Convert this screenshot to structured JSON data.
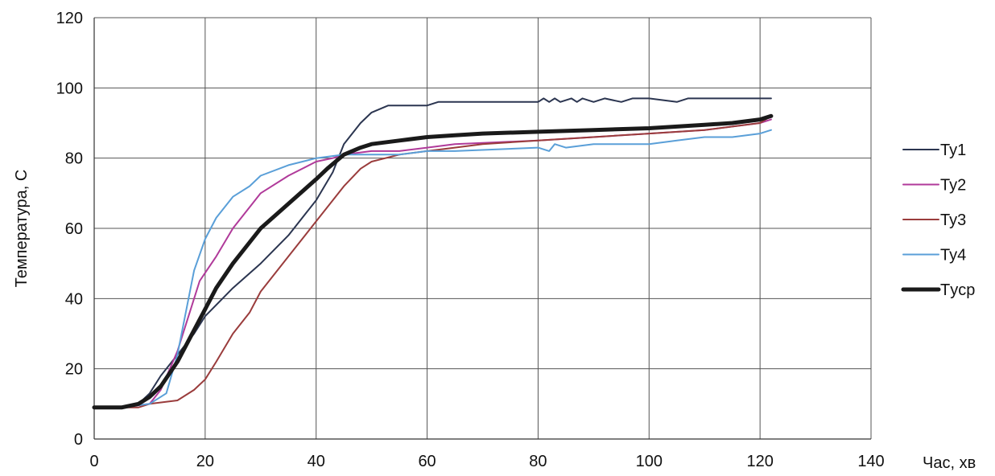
{
  "chart_data": {
    "type": "line",
    "xlabel": "Час, хв",
    "ylabel": "Температура,  С",
    "xlim": [
      0,
      140
    ],
    "ylim": [
      0,
      120
    ],
    "x_ticks": [
      0,
      20,
      40,
      60,
      80,
      100,
      120,
      140
    ],
    "y_ticks": [
      0,
      20,
      40,
      60,
      80,
      100,
      120
    ],
    "grid": true,
    "legend_position": "right",
    "series": [
      {
        "name": "Ту1",
        "color": "#2b3550",
        "width": 2,
        "x": [
          0,
          5,
          8,
          10,
          12,
          15,
          18,
          20,
          25,
          30,
          35,
          40,
          43,
          45,
          48,
          50,
          53,
          55,
          60,
          62,
          65,
          80,
          81,
          82,
          83,
          84,
          86,
          87,
          88,
          90,
          92,
          95,
          97,
          100,
          105,
          107,
          110,
          115,
          122
        ],
        "y": [
          9,
          9,
          10,
          13,
          18,
          24,
          30,
          35,
          43,
          50,
          58,
          68,
          76,
          84,
          90,
          93,
          95,
          95,
          95,
          96,
          96,
          96,
          97,
          96,
          97,
          96,
          97,
          96,
          97,
          96,
          97,
          96,
          97,
          97,
          96,
          97,
          97,
          97,
          97
        ]
      },
      {
        "name": "Ту2",
        "color": "#b03a9a",
        "width": 2,
        "x": [
          0,
          5,
          10,
          12,
          15,
          17,
          19,
          22,
          25,
          28,
          30,
          35,
          40,
          43,
          45,
          50,
          55,
          60,
          65,
          80,
          100,
          110,
          115,
          120,
          122
        ],
        "y": [
          9,
          9,
          10,
          14,
          25,
          35,
          45,
          52,
          60,
          66,
          70,
          75,
          79,
          80,
          81,
          82,
          82,
          83,
          84,
          85,
          87,
          88,
          89,
          90,
          91
        ]
      },
      {
        "name": "Ту3",
        "color": "#9a3c3c",
        "width": 2,
        "x": [
          0,
          5,
          8,
          10,
          15,
          18,
          20,
          22,
          25,
          28,
          30,
          35,
          40,
          45,
          48,
          50,
          55,
          60,
          65,
          70,
          80,
          90,
          100,
          110,
          115,
          120,
          122
        ],
        "y": [
          9,
          9,
          9,
          10,
          11,
          14,
          17,
          22,
          30,
          36,
          42,
          52,
          62,
          72,
          77,
          79,
          81,
          82,
          83,
          84,
          85,
          86,
          87,
          88,
          89,
          90,
          92
        ]
      },
      {
        "name": "Ту4",
        "color": "#5a9fd8",
        "width": 2,
        "x": [
          0,
          5,
          10,
          13,
          15,
          17,
          18,
          20,
          22,
          25,
          28,
          30,
          35,
          40,
          45,
          50,
          55,
          60,
          65,
          80,
          82,
          83,
          85,
          90,
          95,
          100,
          105,
          110,
          115,
          120,
          122
        ],
        "y": [
          9,
          9,
          10,
          13,
          24,
          40,
          48,
          57,
          63,
          69,
          72,
          75,
          78,
          80,
          81,
          81,
          81,
          82,
          82,
          83,
          82,
          84,
          83,
          84,
          84,
          84,
          85,
          86,
          86,
          87,
          88
        ]
      },
      {
        "name": "Тyср",
        "color": "#1a1a1a",
        "width": 5,
        "x": [
          0,
          5,
          8,
          10,
          12,
          15,
          18,
          20,
          22,
          25,
          28,
          30,
          35,
          40,
          42,
          45,
          48,
          50,
          55,
          60,
          65,
          70,
          80,
          90,
          100,
          110,
          115,
          120,
          122
        ],
        "y": [
          9,
          9,
          10,
          12,
          15,
          22,
          31,
          37,
          43,
          50,
          56,
          60,
          67,
          74,
          77,
          81,
          83,
          84,
          85,
          86,
          86.5,
          87,
          87.5,
          88,
          88.5,
          89.5,
          90,
          91,
          92
        ]
      }
    ]
  }
}
